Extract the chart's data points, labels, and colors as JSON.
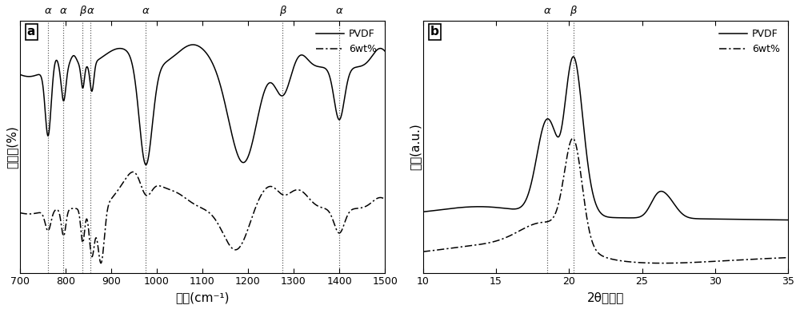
{
  "panel_a": {
    "xlim": [
      700,
      1500
    ],
    "xticks": [
      700,
      800,
      900,
      1000,
      1100,
      1200,
      1300,
      1400,
      1500
    ],
    "xlabel_cn": "波长",
    "xlabel_unit": "(cm⁻¹)",
    "ylabel_cn": "透过率",
    "ylabel_unit": "(%)",
    "label": "a",
    "vlines": [
      762,
      796,
      838,
      855,
      976,
      1276,
      1400
    ],
    "vline_labels": [
      "α",
      "α",
      "β",
      "α",
      "α",
      "β",
      "α"
    ],
    "legend_pvdf": "PVDF",
    "legend_6wt": "6wt%"
  },
  "panel_b": {
    "xlim": [
      10,
      35
    ],
    "xticks": [
      10,
      15,
      20,
      25,
      30,
      35
    ],
    "xlabel_cn": "2θ（度）",
    "ylabel_cn": "强度",
    "ylabel_unit": "(a.u.)",
    "label": "b",
    "vlines": [
      18.5,
      20.3
    ],
    "vline_labels": [
      "α",
      "β"
    ],
    "legend_pvdf": "PVDF",
    "legend_6wt": "6wt%"
  }
}
